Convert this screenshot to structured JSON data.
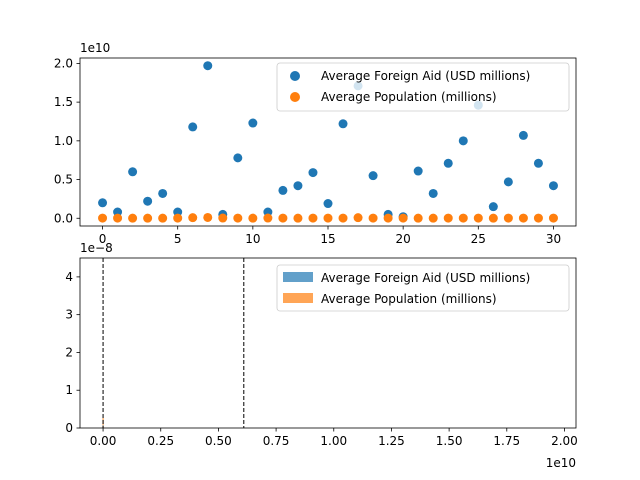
{
  "chart_data": [
    {
      "type": "scatter",
      "exponent_label": "1e10",
      "x": [
        0,
        1,
        2,
        3,
        4,
        5,
        6,
        7,
        8,
        9,
        10,
        11,
        12,
        13,
        14,
        15,
        16,
        17,
        18,
        19,
        20,
        21,
        22,
        23,
        24,
        25,
        26,
        27,
        28,
        29,
        30
      ],
      "series": [
        {
          "name": "Average Foreign Aid (USD millions)",
          "color": "#1f77b4",
          "values": [
            2.0,
            0.8,
            6.0,
            2.2,
            3.2,
            0.8,
            11.8,
            19.7,
            0.5,
            7.8,
            12.3,
            0.8,
            3.6,
            4.2,
            5.9,
            1.9,
            12.2,
            17.1,
            5.5,
            0.5,
            0.2,
            6.1,
            3.2,
            7.1,
            10.0,
            14.6,
            1.5,
            4.7,
            10.7,
            7.1,
            4.2
          ]
        },
        {
          "name": "Average Population (millions)",
          "color": "#ff7f0e",
          "values": [
            0.02,
            0.02,
            0.01,
            0.01,
            0.01,
            0.02,
            0.08,
            0.1,
            0.03,
            0.02,
            0.01,
            0.03,
            0.02,
            0.01,
            0.02,
            0.02,
            0.02,
            0.08,
            0.02,
            0.02,
            0.02,
            0.01,
            0.01,
            0.02,
            0.02,
            0.02,
            0.01,
            0.02,
            0.02,
            0.02,
            0.02
          ]
        }
      ],
      "xlim": [
        -1.5,
        31.5
      ],
      "ylim": [
        -1.0,
        20.7
      ],
      "xticks": [
        0,
        5,
        10,
        15,
        20,
        25,
        30
      ],
      "xtick_labels": [
        "0",
        "5",
        "10",
        "15",
        "20",
        "25",
        "30"
      ],
      "yticks": [
        0,
        5,
        10,
        15,
        20
      ],
      "ytick_labels": [
        "0.0",
        "0.5",
        "1.0",
        "1.5",
        "2.0"
      ],
      "legend_position": "top-right"
    },
    {
      "type": "histogram",
      "x_exponent_label": "1e10",
      "y_exponent_label": "1e−8",
      "series": [
        {
          "name": "Average Foreign Aid (USD millions)",
          "color": "#1f77b4"
        },
        {
          "name": "Average Population (millions)",
          "color": "#ff7f0e"
        }
      ],
      "xlim": [
        -0.1,
        2.05
      ],
      "ylim": [
        0,
        4.5
      ],
      "xticks": [
        0,
        0.25,
        0.5,
        0.75,
        1.0,
        1.25,
        1.5,
        1.75,
        2.0
      ],
      "xtick_labels": [
        "0.00",
        "0.25",
        "0.50",
        "0.75",
        "1.00",
        "1.25",
        "1.50",
        "1.75",
        "2.00"
      ],
      "yticks": [
        0,
        1,
        2,
        3,
        4
      ],
      "ytick_labels": [
        "0",
        "1",
        "2",
        "3",
        "4"
      ],
      "vlines": [
        0.0,
        0.61
      ],
      "legend_position": "top-right"
    }
  ]
}
